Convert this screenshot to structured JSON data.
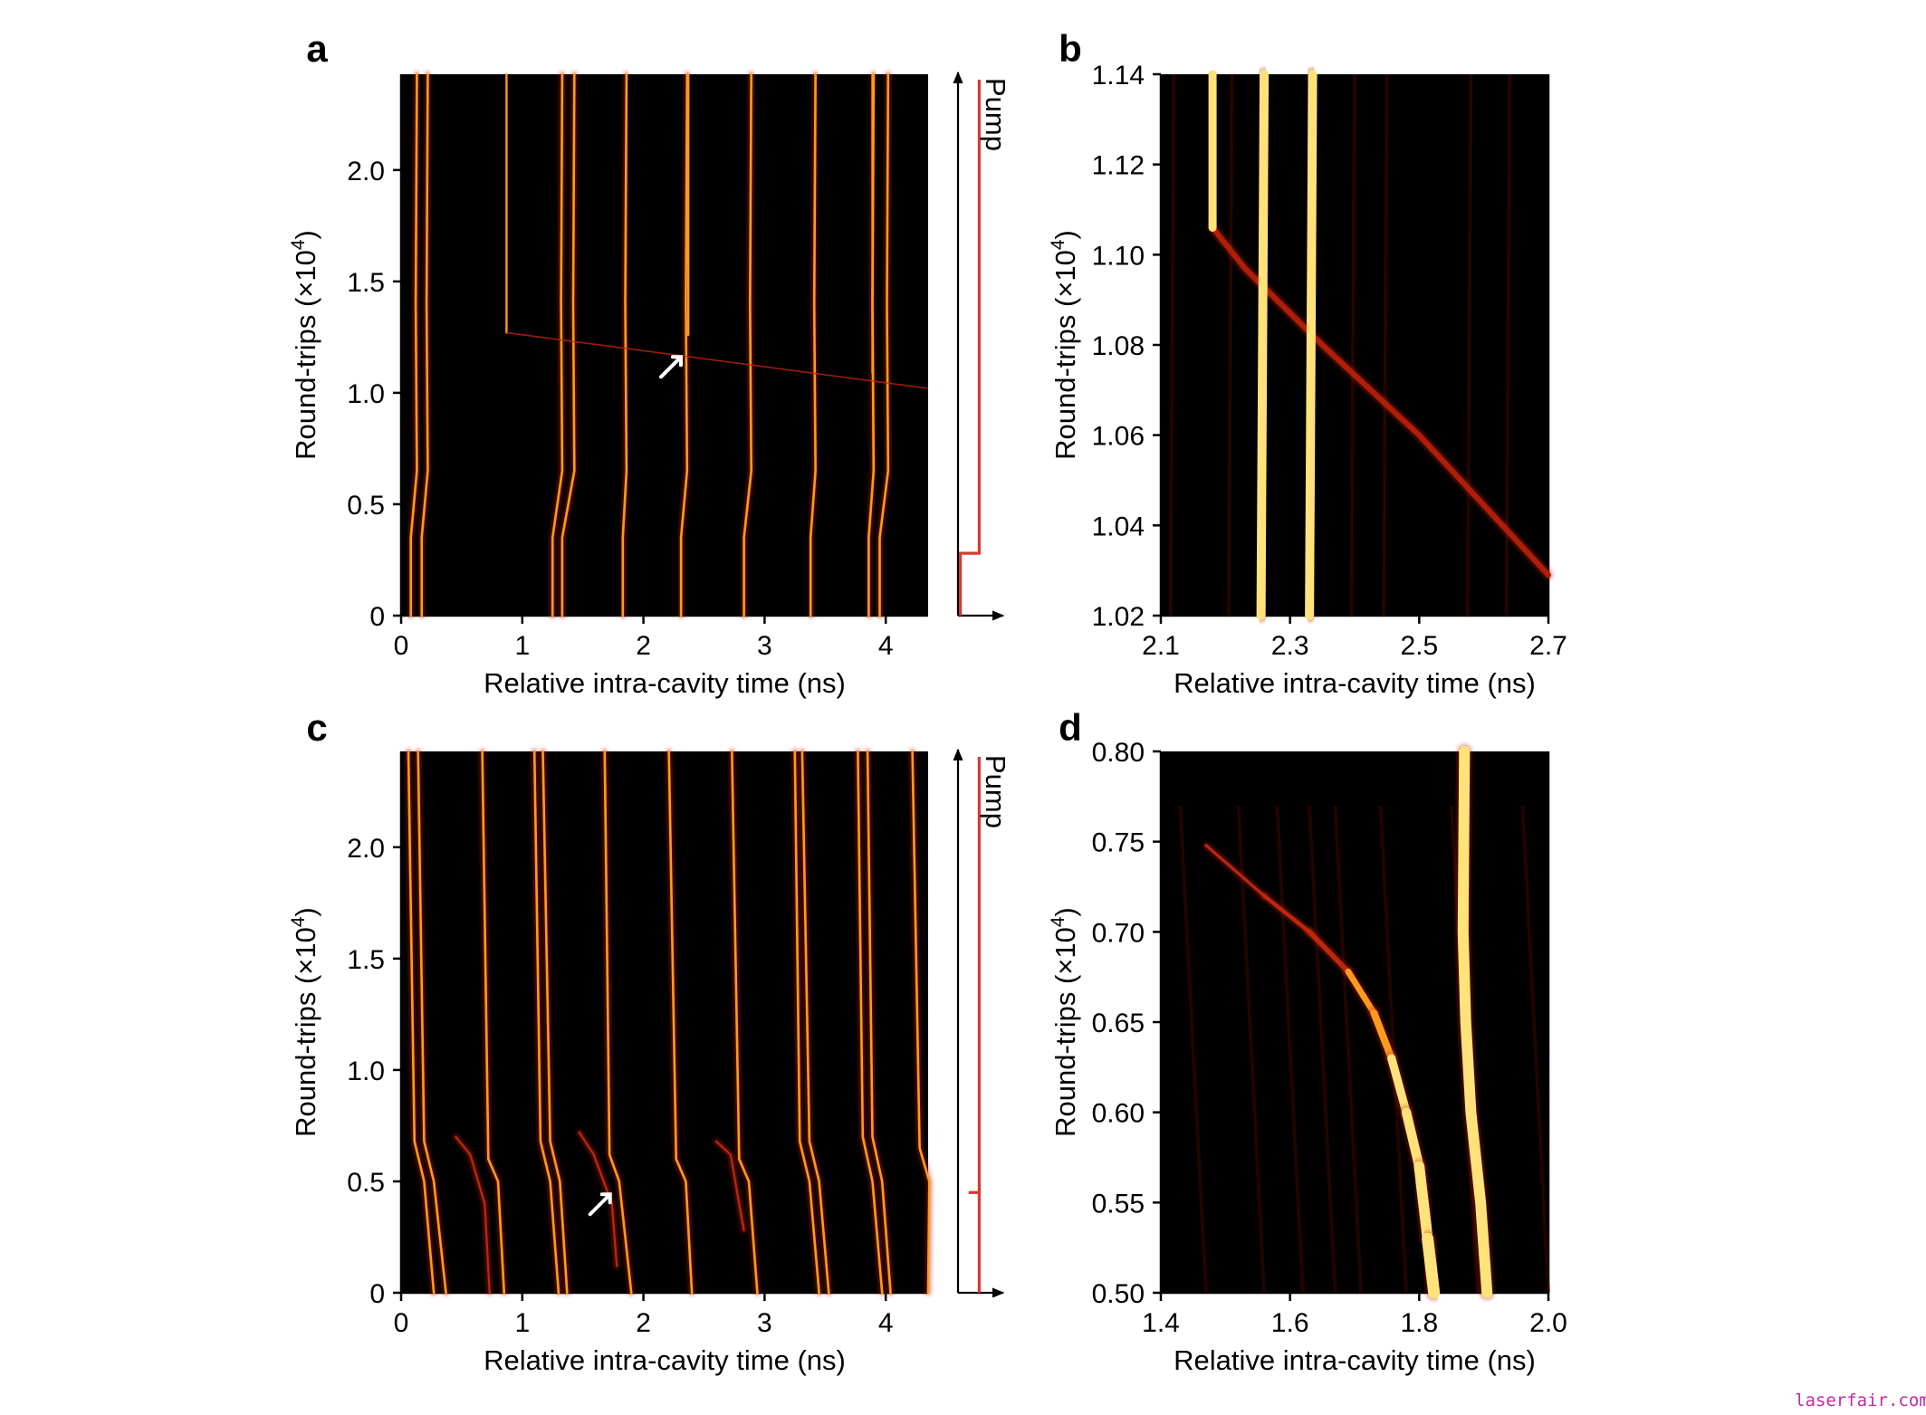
{
  "colors": {
    "background": "#000000",
    "trace_bright": "#ffe27a",
    "trace_mid": "#ff9a1f",
    "trace_dim": "#c0260c",
    "pump": "#d73a30",
    "watermark": "#c22aa0"
  },
  "watermark": "laserfair.com",
  "chart_data": [
    {
      "panel": "a",
      "type": "heatmap",
      "xlabel": "Relative intra-cavity time (ns)",
      "ylabel_main": "Round-trips (×10",
      "ylabel_sup": "4",
      "ylabel_tail": ")",
      "xlim": [
        0,
        4.35
      ],
      "ylim": [
        0,
        2.43
      ],
      "xticks": [
        0,
        1,
        2,
        3,
        4
      ],
      "xtick_labels": [
        "0",
        "1",
        "2",
        "3",
        "4"
      ],
      "yticks": [
        0,
        0.5,
        1.0,
        1.5,
        2.0
      ],
      "ytick_labels": [
        "0",
        "0.5",
        "1.0",
        "1.5",
        "2.0"
      ],
      "pump_label": "Pump",
      "pump_levels": [
        0.1,
        0.28,
        0.9
      ],
      "pump_switch_y": [
        0.28,
        0.28
      ],
      "arrow_at": [
        2.1,
        1.1
      ],
      "traces": [
        {
          "start": 0.13,
          "break": [
            0.35,
            0.08
          ],
          "drift_after": -0.16,
          "color": "bright"
        },
        {
          "start": 0.22,
          "break": [
            0.35,
            0.17
          ],
          "drift_after": -0.16,
          "color": "bright"
        },
        {
          "start": 1.33,
          "break": [
            0.35,
            1.25
          ],
          "drift_after": -0.16,
          "color": "bright"
        },
        {
          "start": 1.43,
          "break": [
            0.35,
            1.33
          ],
          "drift_after": -0.16,
          "color": "bright"
        },
        {
          "start": 1.86,
          "break": [
            0.35,
            1.83
          ],
          "drift_after": -0.16,
          "color": "bright"
        },
        {
          "start": 2.36,
          "break": [
            0.35,
            2.31
          ],
          "drift_after": -0.16,
          "color": "bright"
        },
        {
          "start": 2.89,
          "break": [
            0.35,
            2.83
          ],
          "drift_after": -0.16,
          "color": "bright"
        },
        {
          "start": 3.42,
          "break": [
            0.35,
            3.38
          ],
          "drift_after": -0.16,
          "color": "bright"
        },
        {
          "start": 3.9,
          "break": [
            0.35,
            3.86
          ],
          "drift_after": -0.16,
          "color": "bright"
        },
        {
          "start": 4.02,
          "break": [
            0.35,
            3.95
          ],
          "drift_after": -0.16,
          "color": "bright"
        }
      ],
      "born_traces": [
        {
          "x": 0.87,
          "y_start": 1.27,
          "color": "bright"
        },
        {
          "x": 2.37,
          "y_start": 1.26,
          "color": "bright"
        },
        {
          "x": 3.89,
          "y_start": 1.09,
          "color": "bright"
        }
      ],
      "drifting": {
        "from": [
          0.87,
          1.27
        ],
        "to": [
          4.35,
          1.02
        ]
      }
    },
    {
      "panel": "b",
      "type": "heatmap",
      "xlabel": "Relative intra-cavity time (ns)",
      "ylabel_main": "Round-trips (×10",
      "ylabel_sup": "4",
      "ylabel_tail": ")",
      "xlim": [
        2.1,
        2.7
      ],
      "ylim": [
        1.02,
        1.14
      ],
      "xticks": [
        2.1,
        2.3,
        2.5,
        2.7
      ],
      "xtick_labels": [
        "2.1",
        "2.3",
        "2.5",
        "2.7"
      ],
      "yticks": [
        1.02,
        1.04,
        1.06,
        1.08,
        1.1,
        1.12,
        1.14
      ],
      "ytick_labels": [
        "1.02",
        "1.04",
        "1.06",
        "1.08",
        "1.10",
        "1.12",
        "1.14"
      ],
      "streaks": [
        {
          "points": [
            [
              2.18,
              1.14
            ],
            [
              2.18,
              1.106
            ]
          ],
          "width": 9,
          "color": "bright"
        },
        {
          "points": [
            [
              2.26,
              1.14
            ],
            [
              2.255,
              1.02
            ]
          ],
          "width": 10,
          "color": "bright"
        },
        {
          "points": [
            [
              2.335,
              1.14
            ],
            [
              2.33,
              1.02
            ]
          ],
          "width": 10,
          "color": "bright"
        }
      ],
      "diagonal": {
        "points": [
          [
            2.18,
            1.106
          ],
          [
            2.23,
            1.097
          ],
          [
            2.35,
            1.08
          ],
          [
            2.5,
            1.06
          ],
          [
            2.7,
            1.029
          ]
        ],
        "width": 6
      }
    },
    {
      "panel": "c",
      "type": "heatmap",
      "xlabel": "Relative intra-cavity time (ns)",
      "ylabel_main": "Round-trips (×10",
      "ylabel_sup": "4",
      "ylabel_tail": ")",
      "xlim": [
        0,
        4.35
      ],
      "ylim": [
        0,
        2.43
      ],
      "xticks": [
        0,
        1,
        2,
        3,
        4
      ],
      "xtick_labels": [
        "0",
        "1",
        "2",
        "3",
        "4"
      ],
      "yticks": [
        0,
        0.5,
        1.0,
        1.5,
        2.0
      ],
      "ytick_labels": [
        "0",
        "0.5",
        "1.0",
        "1.5",
        "2.0"
      ],
      "pump_label": "Pump",
      "pump_levels": [
        0.9,
        0.45,
        0.9
      ],
      "pump_switch_y": [
        0.45,
        0.45
      ],
      "arrow_at": [
        1.5,
        0.45
      ],
      "traces": [
        {
          "top": 0.06,
          "bend": [
            0.68,
            0.11
          ],
          "bottom": 0.27
        },
        {
          "top": 0.14,
          "bend": [
            0.68,
            0.19
          ],
          "bottom": 0.37
        },
        {
          "top": 0.67,
          "bend": [
            0.6,
            0.72
          ],
          "bottom": 0.85
        },
        {
          "top": 1.1,
          "bend": [
            0.68,
            1.15
          ],
          "bottom": 1.3
        },
        {
          "top": 1.17,
          "bend": [
            0.68,
            1.23
          ],
          "bottom": 1.37
        },
        {
          "top": 1.68,
          "bend": [
            0.62,
            1.72
          ],
          "bottom": 1.9
        },
        {
          "top": 2.21,
          "bend": [
            0.6,
            2.27
          ],
          "bottom": 2.4
        },
        {
          "top": 2.73,
          "bend": [
            0.6,
            2.79
          ],
          "bottom": 2.94
        },
        {
          "top": 3.25,
          "bend": [
            0.68,
            3.29
          ],
          "bottom": 3.45
        },
        {
          "top": 3.31,
          "bend": [
            0.68,
            3.37
          ],
          "bottom": 3.53
        },
        {
          "top": 3.77,
          "bend": [
            0.7,
            3.81
          ],
          "bottom": 3.97
        },
        {
          "top": 3.85,
          "bend": [
            0.7,
            3.89
          ],
          "bottom": 4.04
        },
        {
          "top": 4.22,
          "bend": [
            0.65,
            4.28
          ],
          "bottom": 4.35
        }
      ],
      "dying": [
        {
          "from": [
            0.45,
            0.7
          ],
          "to": [
            0.73,
            0.0
          ]
        },
        {
          "from": [
            1.47,
            0.72
          ],
          "to": [
            1.78,
            0.12
          ]
        },
        {
          "from": [
            2.6,
            0.68
          ],
          "to": [
            2.83,
            0.28
          ]
        }
      ]
    },
    {
      "panel": "d",
      "type": "heatmap",
      "xlabel": "Relative intra-cavity time (ns)",
      "ylabel_main": "Round-trips (×10",
      "ylabel_sup": "4",
      "ylabel_tail": ")",
      "xlim": [
        1.4,
        2.0
      ],
      "ylim": [
        0.5,
        0.8
      ],
      "xticks": [
        1.4,
        1.6,
        1.8,
        2.0
      ],
      "xtick_labels": [
        "1.4",
        "1.6",
        "1.8",
        "2.0"
      ],
      "yticks": [
        0.5,
        0.55,
        0.6,
        0.65,
        0.7,
        0.75,
        0.8
      ],
      "ytick_labels": [
        "0.50",
        "0.55",
        "0.60",
        "0.65",
        "0.70",
        "0.75",
        "0.80"
      ],
      "streaks": [
        {
          "points": [
            [
              1.87,
              0.8
            ],
            [
              1.868,
              0.7
            ],
            [
              1.872,
              0.65
            ],
            [
              1.88,
              0.6
            ],
            [
              1.895,
              0.55
            ],
            [
              1.905,
              0.5
            ]
          ],
          "width": 12,
          "color": "bright"
        }
      ],
      "curve": {
        "points": [
          [
            1.47,
            0.748
          ],
          [
            1.56,
            0.72
          ],
          [
            1.63,
            0.7
          ],
          [
            1.69,
            0.678
          ],
          [
            1.73,
            0.655
          ],
          [
            1.757,
            0.63
          ],
          [
            1.78,
            0.6
          ],
          [
            1.8,
            0.57
          ],
          [
            1.813,
            0.53
          ],
          [
            1.823,
            0.5
          ]
        ],
        "width_start": 3,
        "width_end": 13
      }
    }
  ]
}
